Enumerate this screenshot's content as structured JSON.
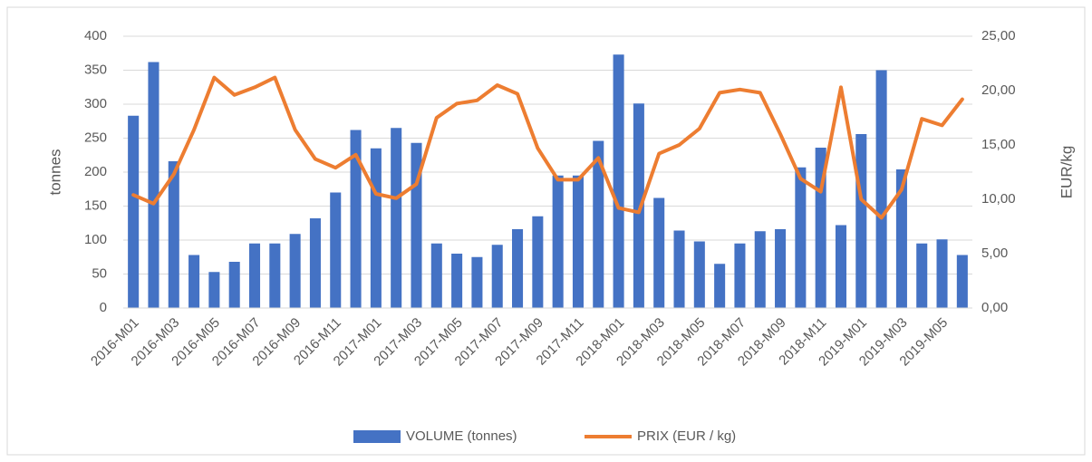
{
  "chart_data": {
    "type": "bar-line",
    "categories": [
      "2016-M01",
      null,
      "2016-M03",
      null,
      "2016-M05",
      null,
      "2016-M07",
      null,
      "2016-M09",
      null,
      "2016-M11",
      null,
      "2017-M01",
      null,
      "2017-M03",
      null,
      "2017-M05",
      null,
      "2017-M07",
      null,
      "2017-M09",
      null,
      "2017-M11",
      null,
      "2018-M01",
      null,
      "2018-M03",
      null,
      "2018-M05",
      null,
      "2018-M07",
      null,
      "2018-M09",
      null,
      "2018-M11",
      null,
      "2019-M01",
      null,
      "2019-M03",
      null,
      "2019-M05",
      null
    ],
    "series": [
      {
        "name": "VOLUME  (tonnes)",
        "type": "bar",
        "color": "#4472c4",
        "values": [
          283,
          362,
          216,
          78,
          53,
          68,
          95,
          95,
          109,
          132,
          170,
          262,
          235,
          265,
          243,
          95,
          80,
          75,
          93,
          116,
          135,
          195,
          195,
          246,
          373,
          301,
          162,
          114,
          98,
          65,
          95,
          113,
          116,
          207,
          236,
          122,
          256,
          350,
          204,
          95,
          101,
          78
        ]
      },
      {
        "name": "PRIX (EUR  / kg)",
        "type": "line",
        "axis": "y2",
        "color": "#ed7d31",
        "values": [
          10.4,
          9.6,
          12.3,
          16.4,
          21.2,
          19.6,
          20.3,
          21.2,
          16.4,
          13.7,
          12.9,
          14.1,
          10.5,
          10.1,
          11.4,
          17.5,
          18.8,
          19.1,
          20.5,
          19.7,
          14.7,
          11.8,
          11.8,
          13.8,
          9.2,
          8.8,
          14.2,
          15.0,
          16.5,
          19.8,
          20.1,
          19.8,
          16.0,
          11.9,
          10.7,
          20.3,
          10.0,
          8.3,
          10.9,
          17.4,
          16.8,
          19.2
        ]
      }
    ],
    "y_label": "tonnes",
    "y2_label": "EUR/kg",
    "ylim": [
      0,
      400
    ],
    "yticks": [
      0,
      50,
      100,
      150,
      200,
      250,
      300,
      350,
      400
    ],
    "y2lim": [
      0,
      25
    ],
    "y2ticks": [
      {
        "value": 0,
        "label": "0,00"
      },
      {
        "value": 5,
        "label": "5,00"
      },
      {
        "value": 10,
        "label": "10,00"
      },
      {
        "value": 15,
        "label": "15,00"
      },
      {
        "value": 20,
        "label": "20,00"
      },
      {
        "value": 25,
        "label": "25,00"
      }
    ],
    "grid": true,
    "legend": "bottom"
  }
}
